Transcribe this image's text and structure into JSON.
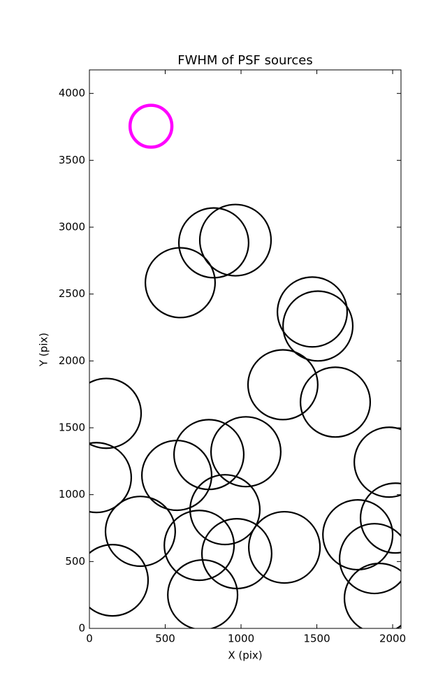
{
  "chart_data": {
    "type": "scatter",
    "title": "FWHM of PSF sources",
    "x_label": "X (pix)",
    "y_label": "Y (pix)",
    "xlim": [
      0,
      2055
    ],
    "ylim": [
      0,
      4176
    ],
    "xticks": [
      0,
      500,
      1000,
      1500,
      2000
    ],
    "yticks": [
      0,
      500,
      1000,
      1500,
      2000,
      2500,
      3000,
      3500,
      4000
    ],
    "series": [
      {
        "color": "#000000",
        "x": [
          111,
          46,
          152,
          336,
          599,
          820,
          963,
          576,
          788,
          1032,
          894,
          724,
          747,
          972,
          1286,
          1276,
          1470,
          1507,
          1622,
          1770,
          1880,
          1977,
          2018,
          1912
        ],
        "values": [
          1608,
          1128,
          360,
          726,
          2585,
          2883,
          2903,
          1144,
          1300,
          1321,
          888,
          621,
          251,
          559,
          606,
          1822,
          2366,
          2261,
          1692,
          700,
          522,
          1243,
          825,
          225
        ],
        "sizes": [
          230,
          230,
          235,
          230,
          230,
          230,
          235,
          230,
          230,
          230,
          230,
          230,
          230,
          230,
          235,
          230,
          230,
          230,
          230,
          230,
          230,
          230,
          230,
          230
        ]
      },
      {
        "color": "#ff00ff",
        "x": [
          406
        ],
        "values": [
          3755
        ],
        "sizes": [
          138
        ]
      }
    ]
  }
}
